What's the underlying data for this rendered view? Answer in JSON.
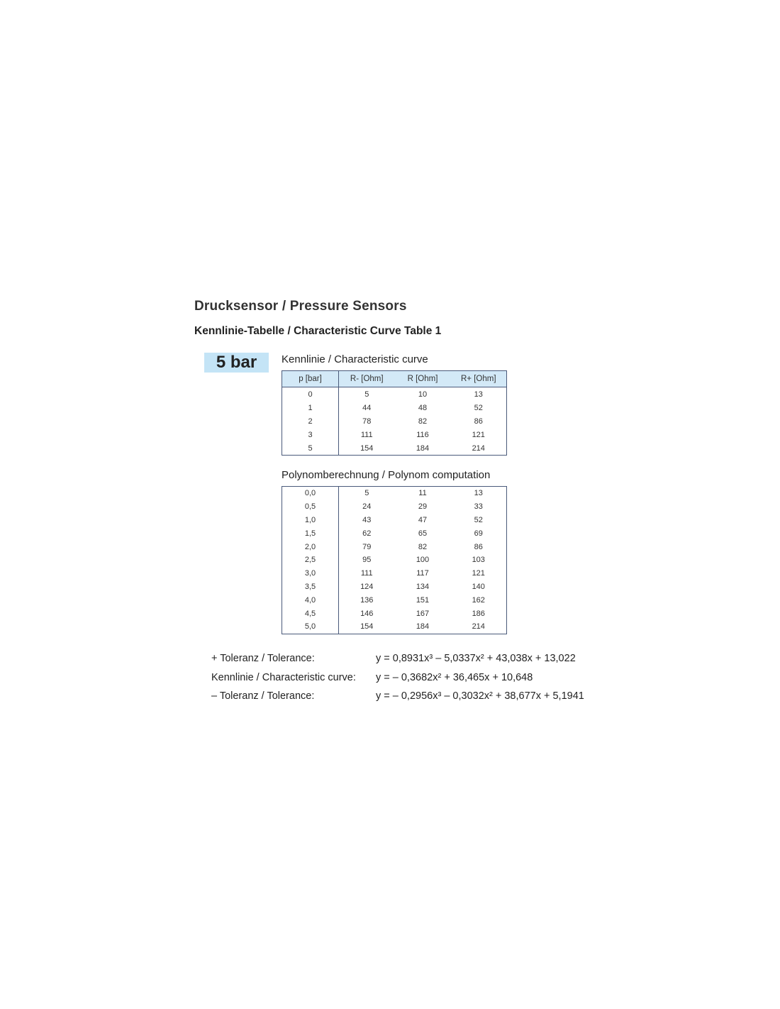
{
  "title": "Drucksensor / Pressure Sensors",
  "subtitle": "Kennlinie-Tabelle / Characteristic Curve Table 1",
  "badge": "5 bar",
  "badge_color": "#c4e4f6",
  "characteristic": {
    "caption": "Kennlinie / Characteristic curve",
    "headers": [
      "p [bar]",
      "R- [Ohm]",
      "R [Ohm]",
      "R+ [Ohm]"
    ],
    "rows": [
      [
        "0",
        "5",
        "10",
        "13"
      ],
      [
        "1",
        "44",
        "48",
        "52"
      ],
      [
        "2",
        "78",
        "82",
        "86"
      ],
      [
        "3",
        "111",
        "116",
        "121"
      ],
      [
        "5",
        "154",
        "184",
        "214"
      ]
    ]
  },
  "polynom": {
    "caption": "Polynomberechnung / Polynom computation",
    "rows": [
      [
        "0,0",
        "5",
        "11",
        "13"
      ],
      [
        "0,5",
        "24",
        "29",
        "33"
      ],
      [
        "1,0",
        "43",
        "47",
        "52"
      ],
      [
        "1,5",
        "62",
        "65",
        "69"
      ],
      [
        "2,0",
        "79",
        "82",
        "86"
      ],
      [
        "2,5",
        "95",
        "100",
        "103"
      ],
      [
        "3,0",
        "111",
        "117",
        "121"
      ],
      [
        "3,5",
        "124",
        "134",
        "140"
      ],
      [
        "4,0",
        "136",
        "151",
        "162"
      ],
      [
        "4,5",
        "146",
        "167",
        "186"
      ],
      [
        "5,0",
        "154",
        "184",
        "214"
      ]
    ]
  },
  "formulas": [
    {
      "label": "+ Toleranz / Tolerance:",
      "expr": "y = 0,8931x³ – 5,0337x² + 43,038x + 13,022"
    },
    {
      "label": "Kennlinie / Characteristic curve:",
      "expr": "y = – 0,3682x² + 36,465x + 10,648"
    },
    {
      "label": "– Toleranz / Tolerance:",
      "expr": "y = – 0,2956x³ – 0,3032x² + 38,677x + 5,1941"
    }
  ]
}
